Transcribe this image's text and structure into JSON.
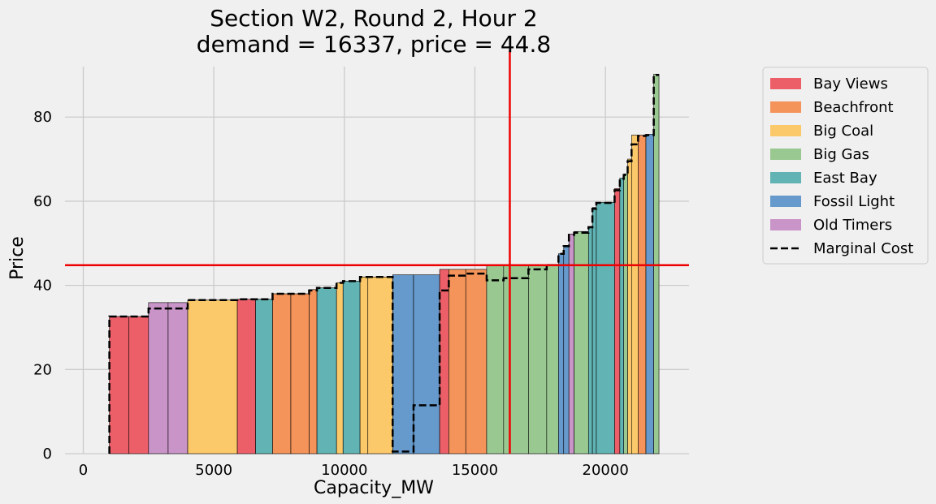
{
  "chart_data": {
    "type": "bar",
    "subtype": "supply-stack",
    "title": "Section W2, Round 2, Hour 2",
    "subtitle": "demand = 16337, price = 44.8",
    "xlabel": "Capacity_MW",
    "ylabel": "Price",
    "xlim": [
      -700,
      23200
    ],
    "ylim": [
      0,
      92
    ],
    "xticks": [
      0,
      5000,
      10000,
      15000,
      20000
    ],
    "yticks": [
      0,
      20,
      40,
      60,
      80
    ],
    "xtick_labels": [
      "0",
      "5000",
      "10000",
      "15000",
      "20000"
    ],
    "ytick_labels": [
      "0",
      "20",
      "40",
      "60",
      "80"
    ],
    "grid": true,
    "legend_position": "outside-right",
    "demand": 16337,
    "price": 44.8,
    "portfolios": [
      {
        "name": "Bay Views",
        "color": "#ed5f68"
      },
      {
        "name": "Beachfront",
        "color": "#f4945a"
      },
      {
        "name": "Big Coal",
        "color": "#fbc86a"
      },
      {
        "name": "Big Gas",
        "color": "#9ac891"
      },
      {
        "name": "East Bay",
        "color": "#61b3b4"
      },
      {
        "name": "Fossil Light",
        "color": "#6699cc"
      },
      {
        "name": "Old Timers",
        "color": "#c994c7"
      }
    ],
    "marginal_cost_label": "Marginal Cost",
    "bars": [
      {
        "portfolio": "Bay Views",
        "start": 1000,
        "end": 1750,
        "price": 32.6,
        "marginal_cost": 32.6
      },
      {
        "portfolio": "Bay Views",
        "start": 1750,
        "end": 2500,
        "price": 32.6,
        "marginal_cost": 32.6
      },
      {
        "portfolio": "Old Timers",
        "start": 2500,
        "end": 3250,
        "price": 35.9,
        "marginal_cost": 34.5
      },
      {
        "portfolio": "Old Timers",
        "start": 3250,
        "end": 4000,
        "price": 35.9,
        "marginal_cost": 34.5
      },
      {
        "portfolio": "Big Coal",
        "start": 4000,
        "end": 5900,
        "price": 36.5,
        "marginal_cost": 36.5
      },
      {
        "portfolio": "Bay Views",
        "start": 5900,
        "end": 6600,
        "price": 36.7,
        "marginal_cost": 36.7
      },
      {
        "portfolio": "East Bay",
        "start": 6600,
        "end": 7250,
        "price": 36.7,
        "marginal_cost": 36.7
      },
      {
        "portfolio": "Beachfront",
        "start": 7250,
        "end": 7950,
        "price": 38.0,
        "marginal_cost": 38.0
      },
      {
        "portfolio": "Beachfront",
        "start": 7950,
        "end": 8650,
        "price": 38.0,
        "marginal_cost": 38.0
      },
      {
        "portfolio": "Beachfront",
        "start": 8650,
        "end": 8950,
        "price": 39.0,
        "marginal_cost": 38.8
      },
      {
        "portfolio": "East Bay",
        "start": 8950,
        "end": 9700,
        "price": 39.4,
        "marginal_cost": 39.4
      },
      {
        "portfolio": "Big Coal",
        "start": 9700,
        "end": 9950,
        "price": 40.6,
        "marginal_cost": 40.6
      },
      {
        "portfolio": "East Bay",
        "start": 9950,
        "end": 10600,
        "price": 41.0,
        "marginal_cost": 41.0
      },
      {
        "portfolio": "Big Coal",
        "start": 10600,
        "end": 10900,
        "price": 42.0,
        "marginal_cost": 42.0
      },
      {
        "portfolio": "Big Coal",
        "start": 10900,
        "end": 11850,
        "price": 42.0,
        "marginal_cost": 42.0
      },
      {
        "portfolio": "Fossil Light",
        "start": 11850,
        "end": 12650,
        "price": 42.5,
        "marginal_cost": 0.5
      },
      {
        "portfolio": "Fossil Light",
        "start": 12650,
        "end": 13650,
        "price": 42.5,
        "marginal_cost": 11.5
      },
      {
        "portfolio": "Bay Views",
        "start": 13650,
        "end": 14000,
        "price": 43.8,
        "marginal_cost": 38.8
      },
      {
        "portfolio": "Beachfront",
        "start": 14000,
        "end": 14650,
        "price": 43.8,
        "marginal_cost": 42.3
      },
      {
        "portfolio": "Beachfront",
        "start": 14650,
        "end": 15450,
        "price": 43.8,
        "marginal_cost": 42.8
      },
      {
        "portfolio": "Big Gas",
        "start": 15450,
        "end": 16100,
        "price": 44.8,
        "marginal_cost": 41.2
      },
      {
        "portfolio": "Big Gas",
        "start": 16100,
        "end": 17050,
        "price": 44.8,
        "marginal_cost": 41.7
      },
      {
        "portfolio": "Big Gas",
        "start": 17050,
        "end": 17750,
        "price": 44.8,
        "marginal_cost": 43.8
      },
      {
        "portfolio": "Big Gas",
        "start": 17750,
        "end": 18200,
        "price": 45.0,
        "marginal_cost": 44.8
      },
      {
        "portfolio": "Fossil Light",
        "start": 18200,
        "end": 18400,
        "price": 47.5,
        "marginal_cost": 47.5
      },
      {
        "portfolio": "Fossil Light",
        "start": 18400,
        "end": 18600,
        "price": 49.5,
        "marginal_cost": 49.3
      },
      {
        "portfolio": "Old Timers",
        "start": 18600,
        "end": 18800,
        "price": 52.2,
        "marginal_cost": 52.0
      },
      {
        "portfolio": "Big Gas",
        "start": 18800,
        "end": 19350,
        "price": 52.8,
        "marginal_cost": 52.5
      },
      {
        "portfolio": "East Bay",
        "start": 19350,
        "end": 19500,
        "price": 54.0,
        "marginal_cost": 53.8
      },
      {
        "portfolio": "East Bay",
        "start": 19500,
        "end": 19650,
        "price": 58.5,
        "marginal_cost": 58.2
      },
      {
        "portfolio": "East Bay",
        "start": 19650,
        "end": 20350,
        "price": 59.7,
        "marginal_cost": 59.6
      },
      {
        "portfolio": "Bay Views",
        "start": 20350,
        "end": 20550,
        "price": 63.0,
        "marginal_cost": 62.6
      },
      {
        "portfolio": "East Bay",
        "start": 20550,
        "end": 20700,
        "price": 65.5,
        "marginal_cost": 65.3
      },
      {
        "portfolio": "Big Gas",
        "start": 20700,
        "end": 20850,
        "price": 66.5,
        "marginal_cost": 66.2
      },
      {
        "portfolio": "Big Coal",
        "start": 20850,
        "end": 21000,
        "price": 70.0,
        "marginal_cost": 69.5
      },
      {
        "portfolio": "Big Coal",
        "start": 21000,
        "end": 21250,
        "price": 75.7,
        "marginal_cost": 73.5
      },
      {
        "portfolio": "Beachfront",
        "start": 21250,
        "end": 21550,
        "price": 75.7,
        "marginal_cost": 75.5
      },
      {
        "portfolio": "Fossil Light",
        "start": 21550,
        "end": 21850,
        "price": 75.9,
        "marginal_cost": 75.7
      },
      {
        "portfolio": "Big Gas",
        "start": 21850,
        "end": 22050,
        "price": 90.2,
        "marginal_cost": 90.0
      }
    ]
  }
}
